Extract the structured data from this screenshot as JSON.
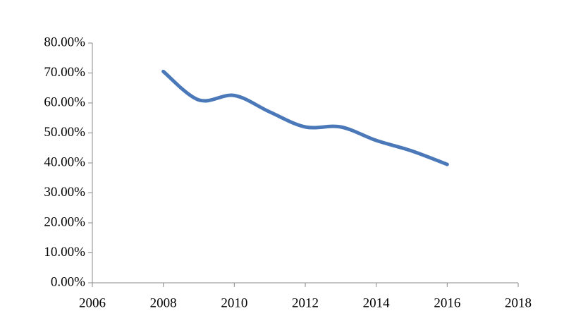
{
  "chart_data": {
    "type": "line",
    "x": [
      2008,
      2009,
      2010,
      2011,
      2012,
      2013,
      2014,
      2015,
      2016
    ],
    "series": [
      {
        "color": "#4a78b8",
        "values": [
          70.5,
          61,
          62.5,
          57,
          52,
          52,
          47.5,
          44,
          39.5
        ]
      }
    ],
    "xlim": [
      2006,
      2018
    ],
    "xticks": [
      2006,
      2008,
      2010,
      2012,
      2014,
      2016,
      2018
    ],
    "ylim": [
      0,
      80
    ],
    "yticks": [
      {
        "value": 0,
        "label": "0.00%"
      },
      {
        "value": 10,
        "label": "10.00%"
      },
      {
        "value": 20,
        "label": "20.00%"
      },
      {
        "value": 30,
        "label": "30.00%"
      },
      {
        "value": 40,
        "label": "40.00%"
      },
      {
        "value": 50,
        "label": "50.00%"
      },
      {
        "value": 60,
        "label": "60.00%"
      },
      {
        "value": 70,
        "label": "70.00%"
      },
      {
        "value": 80,
        "label": "80.00%"
      }
    ],
    "grid": false,
    "smooth": true
  }
}
